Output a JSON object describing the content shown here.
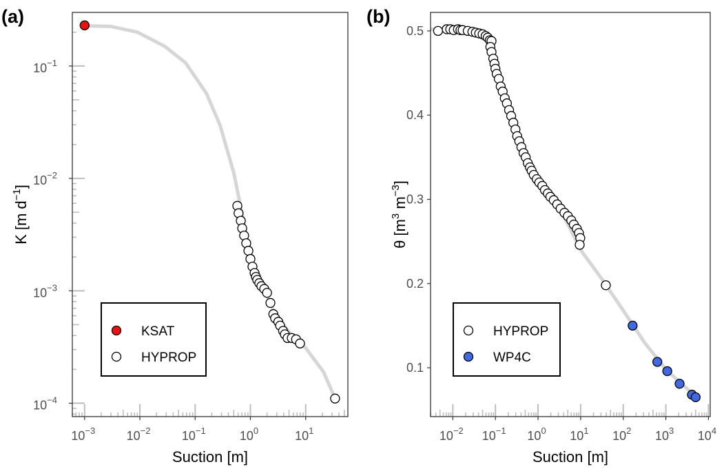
{
  "chart_data": [
    {
      "type": "scatter",
      "panel_label": "(a)",
      "xlabel": "Suction [m]",
      "ylabel_segments": [
        {
          "t": "K  [m d"
        },
        {
          "t": "−1",
          "sup": true
        },
        {
          "t": "]"
        }
      ],
      "xscale": "log",
      "yscale": "log",
      "xlim": [
        0.0006,
        58
      ],
      "ylim": [
        7.6e-05,
        0.3
      ],
      "xticks": [
        {
          "v": 0.001,
          "base": "10",
          "exp": "−3"
        },
        {
          "v": 0.01,
          "base": "10",
          "exp": "−2"
        },
        {
          "v": 0.1,
          "base": "10",
          "exp": "−1"
        },
        {
          "v": 1,
          "base": "10",
          "exp": "0"
        },
        {
          "v": 10,
          "base": "10",
          "exp": "1"
        }
      ],
      "yticks": [
        {
          "v": 0.1,
          "base": "10",
          "exp": "−1"
        },
        {
          "v": 0.01,
          "base": "10",
          "exp": "−2"
        },
        {
          "v": 0.001,
          "base": "10",
          "exp": "−3"
        },
        {
          "v": 0.0001,
          "base": "10",
          "exp": "−4"
        }
      ],
      "legend_position": "bottom-left",
      "fit_curve": [
        [
          0.001,
          0.228
        ],
        [
          0.003,
          0.225
        ],
        [
          0.009,
          0.2
        ],
        [
          0.028,
          0.15
        ],
        [
          0.067,
          0.107
        ],
        [
          0.16,
          0.057
        ],
        [
          0.28,
          0.03
        ],
        [
          0.5,
          0.0112
        ],
        [
          0.67,
          0.0055
        ],
        [
          1.0,
          0.0021
        ],
        [
          1.19,
          0.00144
        ],
        [
          2.0,
          0.00092
        ],
        [
          2.8,
          0.00062
        ],
        [
          5,
          0.00043
        ],
        [
          10,
          0.00031
        ],
        [
          21,
          0.00019
        ],
        [
          34,
          0.00011
        ]
      ],
      "series": [
        {
          "name": "KSAT",
          "color": "#e8130f",
          "points": [
            [
              0.001,
              0.23
            ]
          ]
        },
        {
          "name": "HYPROP",
          "color": "#ffffff",
          "points": [
            [
              0.58,
              0.0057
            ],
            [
              0.61,
              0.0049
            ],
            [
              0.67,
              0.0042
            ],
            [
              0.71,
              0.0036
            ],
            [
              0.77,
              0.0031
            ],
            [
              0.84,
              0.00265
            ],
            [
              0.92,
              0.00227
            ],
            [
              1.0,
              0.00192
            ],
            [
              1.09,
              0.00164
            ],
            [
              1.19,
              0.00144
            ],
            [
              1.26,
              0.00133
            ],
            [
              1.33,
              0.00125
            ],
            [
              1.45,
              0.00117
            ],
            [
              1.58,
              0.0011
            ],
            [
              1.78,
              0.00104
            ],
            [
              2.0,
              0.00096
            ],
            [
              2.3,
              0.00078
            ],
            [
              2.6,
              0.00062
            ],
            [
              2.8,
              0.00057
            ],
            [
              3.2,
              0.00053
            ],
            [
              3.45,
              0.00049
            ],
            [
              3.9,
              0.00044
            ],
            [
              4.2,
              0.00041
            ],
            [
              4.7,
              0.00038
            ],
            [
              5.6,
              0.00038
            ],
            [
              6.7,
              0.00037
            ],
            [
              7.9,
              0.00034
            ],
            [
              34,
              0.00011
            ]
          ]
        }
      ]
    },
    {
      "type": "scatter",
      "panel_label": "(b)",
      "xlabel": "Suction [m]",
      "ylabel_segments": [
        {
          "t": "θ  [m"
        },
        {
          "t": "3",
          "sup": true
        },
        {
          "t": " m"
        },
        {
          "t": "−3",
          "sup": true
        },
        {
          "t": "]"
        }
      ],
      "xscale": "log",
      "yscale": "linear",
      "xlim": [
        0.003,
        11000
      ],
      "ylim": [
        0.042,
        0.522
      ],
      "xticks": [
        {
          "v": 0.01,
          "base": "10",
          "exp": "−2"
        },
        {
          "v": 0.1,
          "base": "10",
          "exp": "−1"
        },
        {
          "v": 1,
          "base": "10",
          "exp": "0"
        },
        {
          "v": 10,
          "base": "10",
          "exp": "1"
        },
        {
          "v": 100,
          "base": "10",
          "exp": "2"
        },
        {
          "v": 1000,
          "base": "10",
          "exp": "3"
        },
        {
          "v": 10000,
          "base": "10",
          "exp": "4"
        }
      ],
      "yticks": [
        {
          "v": 0.5,
          "label": "0.5"
        },
        {
          "v": 0.4,
          "label": "0.4"
        },
        {
          "v": 0.3,
          "label": "0.3"
        },
        {
          "v": 0.2,
          "label": "0.2"
        },
        {
          "v": 0.1,
          "label": "0.1"
        }
      ],
      "legend_position": "bottom-left",
      "fit_curve": [
        [
          0.0032,
          0.502
        ],
        [
          0.032,
          0.499
        ],
        [
          0.063,
          0.492
        ],
        [
          0.1,
          0.465
        ],
        [
          0.2,
          0.41
        ],
        [
          0.4,
          0.365
        ],
        [
          1,
          0.325
        ],
        [
          3.2,
          0.29
        ],
        [
          10,
          0.24
        ],
        [
          32,
          0.205
        ],
        [
          100,
          0.168
        ],
        [
          316,
          0.13
        ],
        [
          1000,
          0.098
        ],
        [
          3162,
          0.075
        ],
        [
          5600,
          0.063
        ]
      ],
      "series": [
        {
          "name": "HYPROP",
          "color": "#ffffff",
          "points": [
            [
              0.0045,
              0.5
            ],
            [
              0.0072,
              0.502
            ],
            [
              0.0087,
              0.502
            ],
            [
              0.0105,
              0.501
            ],
            [
              0.0132,
              0.502
            ],
            [
              0.0151,
              0.501
            ],
            [
              0.017,
              0.501
            ],
            [
              0.0224,
              0.5
            ],
            [
              0.0288,
              0.499
            ],
            [
              0.0347,
              0.498
            ],
            [
              0.0417,
              0.497
            ],
            [
              0.05,
              0.496
            ],
            [
              0.0589,
              0.494
            ],
            [
              0.066,
              0.492
            ],
            [
              0.074,
              0.489
            ],
            [
              0.081,
              0.488
            ],
            [
              0.076,
              0.481
            ],
            [
              0.081,
              0.475
            ],
            [
              0.089,
              0.467
            ],
            [
              0.095,
              0.461
            ],
            [
              0.1,
              0.455
            ],
            [
              0.107,
              0.449
            ],
            [
              0.12,
              0.443
            ],
            [
              0.133,
              0.434
            ],
            [
              0.148,
              0.428
            ],
            [
              0.166,
              0.42
            ],
            [
              0.186,
              0.414
            ],
            [
              0.209,
              0.406
            ],
            [
              0.234,
              0.399
            ],
            [
              0.263,
              0.391
            ],
            [
              0.295,
              0.383
            ],
            [
              0.324,
              0.375
            ],
            [
              0.363,
              0.369
            ],
            [
              0.407,
              0.362
            ],
            [
              0.457,
              0.355
            ],
            [
              0.513,
              0.35
            ],
            [
              0.575,
              0.343
            ],
            [
              0.646,
              0.338
            ],
            [
              0.708,
              0.334
            ],
            [
              0.794,
              0.329
            ],
            [
              0.933,
              0.324
            ],
            [
              1.07,
              0.32
            ],
            [
              1.26,
              0.316
            ],
            [
              1.45,
              0.311
            ],
            [
              1.7,
              0.307
            ],
            [
              1.95,
              0.303
            ],
            [
              2.34,
              0.299
            ],
            [
              2.82,
              0.294
            ],
            [
              3.39,
              0.289
            ],
            [
              4.17,
              0.284
            ],
            [
              5.01,
              0.28
            ],
            [
              6.03,
              0.275
            ],
            [
              6.92,
              0.27
            ],
            [
              8.13,
              0.265
            ],
            [
              9.12,
              0.26
            ],
            [
              9.8,
              0.254
            ],
            [
              9.5,
              0.246
            ],
            [
              39,
              0.198
            ]
          ]
        },
        {
          "name": "WP4C",
          "color": "#4169e1",
          "points": [
            [
              166,
              0.15
            ],
            [
              630,
              0.107
            ],
            [
              1080,
              0.096
            ],
            [
              2100,
              0.081
            ],
            [
              4100,
              0.068
            ],
            [
              5000,
              0.065
            ]
          ]
        }
      ]
    }
  ]
}
